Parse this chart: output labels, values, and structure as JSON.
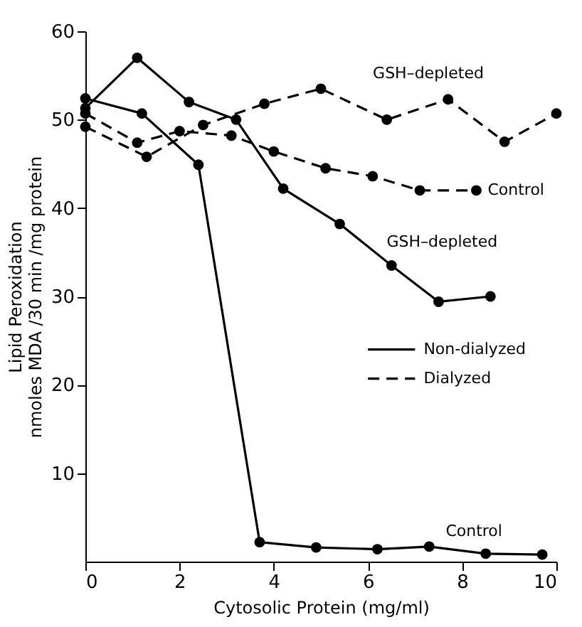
{
  "chart_data": {
    "type": "line",
    "xlabel": "Cytosolic Protein (mg/ml)",
    "ylabel": "Lipid Peroxidation\nnmoles MDA /30 min /mg protein",
    "xlim": [
      0,
      10
    ],
    "xticks": [
      0,
      2,
      4,
      6,
      8,
      10
    ],
    "ylim": [
      0,
      60
    ],
    "yticks": [
      10,
      20,
      30,
      40,
      50,
      60
    ],
    "grid": false,
    "legend": "right",
    "marker": "circle",
    "series": [
      {
        "name": "GSH–depleted",
        "color": "#000000",
        "line_style": "solid",
        "x": [
          0,
          1.1,
          2.2,
          3.2,
          4.2,
          5.4,
          6.5,
          7.5,
          8.6
        ],
        "values": [
          51.3,
          57,
          52,
          50,
          42.2,
          38.2,
          33.5,
          29.4,
          30
        ]
      },
      {
        "name": "Control",
        "color": "#000000",
        "line_style": "solid",
        "x": [
          0,
          1.2,
          2.4,
          3.7,
          4.9,
          6.2,
          7.3,
          8.5,
          9.7
        ],
        "values": [
          52.4,
          50.7,
          44.9,
          2.2,
          1.6,
          1.4,
          1.7,
          0.9,
          0.8
        ]
      },
      {
        "name": "GSH–depleted",
        "color": "#000000",
        "line_style": "dashed",
        "x": [
          0,
          1.3,
          2.5,
          3.8,
          5.0,
          6.4,
          7.7,
          8.9,
          10
        ],
        "values": [
          49.2,
          45.8,
          49.4,
          51.8,
          53.5,
          50,
          52.3,
          47.5,
          50.7
        ]
      },
      {
        "name": "Control",
        "color": "#000000",
        "line_style": "dashed",
        "x": [
          0,
          1.1,
          2,
          3.1,
          4,
          5.1,
          6.1,
          7.1,
          8.3
        ],
        "values": [
          50.7,
          47.4,
          48.7,
          48.2,
          46.4,
          44.5,
          43.6,
          42,
          42
        ]
      }
    ],
    "annotations": [
      "Non-dialyzed",
      "Dialyzed"
    ]
  }
}
